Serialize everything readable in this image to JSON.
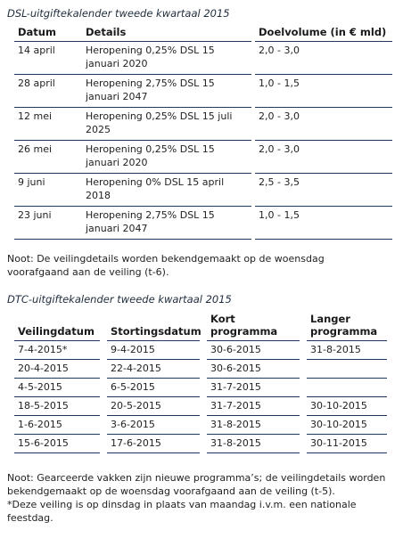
{
  "dsl": {
    "title": "DSL-uitgiftekalender tweede kwartaal 2015",
    "headers": [
      "Datum",
      "Details",
      "Doelvolume (in € mld)"
    ],
    "rows": [
      {
        "date": "14 april",
        "details": "Heropening 0,25% DSL 15 januari 2020",
        "volume": "2,0 - 3,0"
      },
      {
        "date": "28 april",
        "details": "Heropening 2,75% DSL 15 januari 2047",
        "volume": "1,0 - 1,5"
      },
      {
        "date": "12 mei",
        "details": "Heropening 0,25% DSL 15 juli 2025",
        "volume": "2,0 - 3,0"
      },
      {
        "date": "26 mei",
        "details": "Heropening 0,25% DSL 15 januari 2020",
        "volume": "2,0 - 3,0"
      },
      {
        "date": "9 juni",
        "details": "Heropening 0% DSL 15 april 2018",
        "volume": "2,5 - 3,5"
      },
      {
        "date": "23 juni",
        "details": "Heropening 2,75% DSL 15 januari 2047",
        "volume": "1,0 - 1,5"
      }
    ],
    "note": "Noot: De veilingdetails worden bekendgemaakt op de woensdag voorafgaand aan de veiling (t-6)."
  },
  "dtc": {
    "title": "DTC-uitgiftekalender tweede kwartaal 2015",
    "headers": [
      "Veilingdatum",
      "Stortingsdatum",
      "Kort programma",
      "Langer programma"
    ],
    "rows": [
      {
        "auction": "7-4-2015*",
        "settlement": "9-4-2015",
        "short": "30-6-2015",
        "long": "31-8-2015"
      },
      {
        "auction": "20-4-2015",
        "settlement": "22-4-2015",
        "short": "30-6-2015",
        "long": ""
      },
      {
        "auction": "4-5-2015",
        "settlement": "6-5-2015",
        "short": "31-7-2015",
        "long": ""
      },
      {
        "auction": "18-5-2015",
        "settlement": "20-5-2015",
        "short": "31-7-2015",
        "long": "30-10-2015"
      },
      {
        "auction": "1-6-2015",
        "settlement": "3-6-2015",
        "short": "31-8-2015",
        "long": "30-10-2015"
      },
      {
        "auction": "15-6-2015",
        "settlement": "17-6-2015",
        "short": "31-8-2015",
        "long": "30-11-2015"
      }
    ],
    "note1": "Noot: Gearceerde vakken zijn nieuwe programma’s; de veilingdetails worden bekendgemaakt op de woensdag voorafgaand aan de veiling (t-5).",
    "note2": "*Deze veiling is op dinsdag in plaats van maandag i.v.m. een nationale feestdag."
  }
}
